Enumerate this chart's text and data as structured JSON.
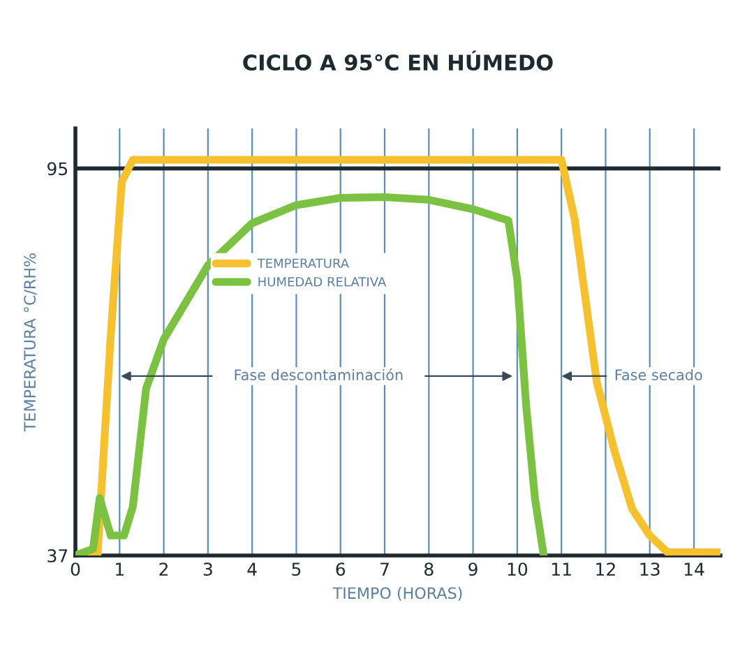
{
  "chart_data": {
    "type": "line",
    "title": "CICLO A 95°C EN HÚMEDO",
    "xlabel": "TIEMPO (HORAS)",
    "ylabel": "TEMPERATURA °C/RH%",
    "series": [
      {
        "name": "TEMPERATURA",
        "color": "#f5c12e",
        "x": [
          0,
          0.5,
          0.8,
          1.05,
          1.3,
          11,
          11.3,
          11.8,
          12.2,
          12.6,
          13,
          13.4,
          14.6
        ],
        "values": [
          37,
          37,
          70,
          93,
          96.3,
          96.3,
          87.4,
          63,
          52.7,
          44,
          40,
          37.5,
          37.5
        ]
      },
      {
        "name": "HUMEDAD RELATIVA",
        "color": "#7cc242",
        "x": [
          0,
          0.4,
          0.55,
          0.8,
          1.1,
          1.3,
          1.6,
          2,
          3,
          4,
          5,
          6,
          7,
          8,
          9,
          9.8,
          10,
          10.2,
          10.4,
          10.6
        ],
        "values": [
          37,
          38,
          45.6,
          40,
          40,
          44.3,
          62,
          69.4,
          80.5,
          86.8,
          89.5,
          90.6,
          90.7,
          90.3,
          88.9,
          87.2,
          78.4,
          59.6,
          45.6,
          37
        ]
      }
    ],
    "xlim": [
      0,
      14.6
    ],
    "ylim": [
      37,
      101
    ],
    "xticks": [
      0,
      1,
      2,
      3,
      4,
      5,
      6,
      7,
      8,
      9,
      10,
      11,
      12,
      13,
      14
    ],
    "yticks": [
      37,
      95
    ],
    "ref_lines": [
      {
        "axis": "y",
        "value": 95,
        "color": "#1f2a30"
      }
    ],
    "annotations": [
      "Fase descontaminación",
      "Fase secado"
    ],
    "grid": "x",
    "legend": "center left",
    "marker": "none",
    "line_style": "solid"
  }
}
